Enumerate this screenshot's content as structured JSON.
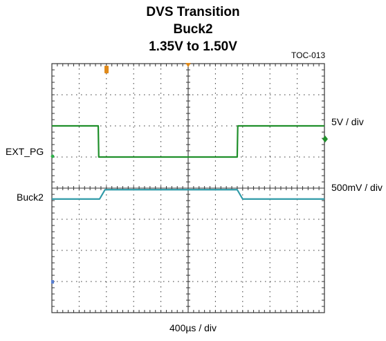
{
  "header": {
    "title_line1": "DVS Transition",
    "title_line2": "Buck2",
    "title_line3": "1.35V to 1.50V",
    "figure_id": "TOC-013"
  },
  "labels": {
    "ch1_name": "EXT_PG",
    "ch2_name": "Buck2",
    "ch1_scale": "5V / div",
    "ch2_scale": "500mV / div",
    "time_scale": "400µs / div"
  },
  "chart_data": {
    "type": "line",
    "title": "DVS Transition Buck2 1.35V to 1.50V",
    "xlabel": "400µs / div",
    "grid": true,
    "divisions": {
      "x": 10,
      "y": 8
    },
    "xlim_div": [
      0,
      10
    ],
    "ylim_div": [
      0,
      8
    ],
    "series": [
      {
        "name": "EXT_PG",
        "color": "#1f8f2a",
        "scale": "5V / div",
        "x_div": [
          0,
          1.7,
          1.72,
          6.8,
          6.82,
          10
        ],
        "y_div": [
          6.0,
          6.0,
          5.0,
          5.0,
          6.0,
          6.0
        ]
      },
      {
        "name": "Buck2",
        "color": "#2f9aa8",
        "scale": "500mV / div",
        "x_div": [
          0,
          1.75,
          1.95,
          6.8,
          7.0,
          10
        ],
        "y_div": [
          3.65,
          3.65,
          3.95,
          3.95,
          3.65,
          3.65
        ]
      }
    ]
  },
  "colors": {
    "ch1": "#1f8f2a",
    "ch2": "#2f9aa8",
    "grid": "#333333",
    "cursor_marker": "#e08a1a",
    "ch1_ground_marker": "#2fb04a",
    "ch3_ground_marker": "#5a7fd0"
  }
}
